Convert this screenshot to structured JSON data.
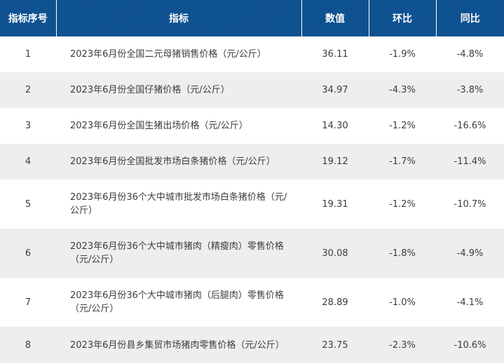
{
  "table": {
    "headers": [
      "指标序号",
      "指标",
      "数值",
      "环比",
      "同比"
    ],
    "rows": [
      {
        "index": "1",
        "name": "2023年6月份全国二元母猪销售价格（元/公斤）",
        "value": "36.11",
        "mom": "-1.9%",
        "yoy": "-4.8%"
      },
      {
        "index": "2",
        "name": "2023年6月份全国仔猪价格（元/公斤）",
        "value": "34.97",
        "mom": "-4.3%",
        "yoy": "-3.8%"
      },
      {
        "index": "3",
        "name": "2023年6月份全国生猪出场价格（元/公斤）",
        "value": "14.30",
        "mom": "-1.2%",
        "yoy": "-16.6%"
      },
      {
        "index": "4",
        "name": "2023年6月份全国批发市场白条猪价格（元/公斤）",
        "value": "19.12",
        "mom": "-1.7%",
        "yoy": "-11.4%"
      },
      {
        "index": "5",
        "name": "2023年6月份36个大中城市批发市场白条猪价格（元/公斤）",
        "value": "19.31",
        "mom": "-1.2%",
        "yoy": "-10.7%"
      },
      {
        "index": "6",
        "name": "2023年6月份36个大中城市猪肉（精瘦肉）零售价格（元/公斤）",
        "value": "30.08",
        "mom": "-1.8%",
        "yoy": "-4.9%"
      },
      {
        "index": "7",
        "name": "2023年6月份36个大中城市猪肉（后腿肉）零售价格（元/公斤）",
        "value": "28.89",
        "mom": "-1.0%",
        "yoy": "-4.1%"
      },
      {
        "index": "8",
        "name": "2023年6月份县乡集贸市场猪肉零售价格（元/公斤）",
        "value": "23.75",
        "mom": "-2.3%",
        "yoy": "-10.6%"
      }
    ]
  }
}
